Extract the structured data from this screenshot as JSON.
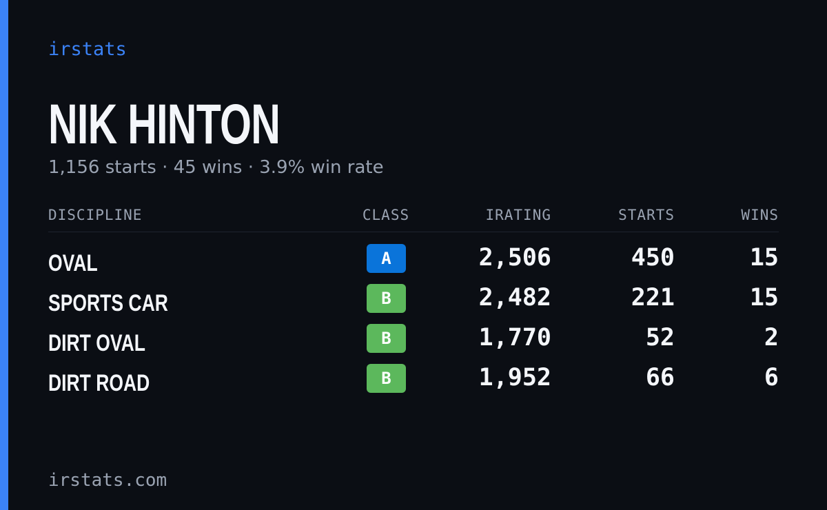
{
  "brand": "irstats",
  "player": {
    "name": "NIK HINTON",
    "summary": "1,156 starts · 45 wins · 3.9% win rate"
  },
  "table": {
    "columns": [
      "DISCIPLINE",
      "CLASS",
      "IRATING",
      "STARTS",
      "WINS"
    ],
    "rows": [
      [
        "OVAL",
        "A",
        "2,506",
        "450",
        "15"
      ],
      [
        "SPORTS CAR",
        "B",
        "2,482",
        "221",
        "15"
      ],
      [
        "DIRT OVAL",
        "B",
        "1,770",
        "52",
        "2"
      ],
      [
        "DIRT ROAD",
        "B",
        "1,952",
        "66",
        "6"
      ]
    ],
    "class_colors": {
      "A": "#0a74da",
      "B": "#5cb85c"
    }
  },
  "footer": "irstats.com"
}
